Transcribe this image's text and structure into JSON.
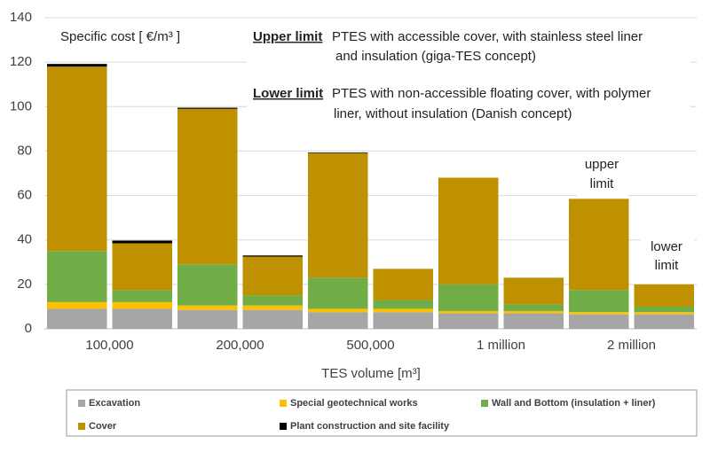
{
  "chart_data": {
    "type": "stacked_bar",
    "categories": [
      "100,000",
      null,
      "200,000",
      null,
      "500,000",
      null,
      "1 million",
      null,
      "2 million",
      null
    ],
    "xlabel": "TES volume [m³]",
    "ylim": [
      0,
      140
    ],
    "yticks": [
      0,
      20,
      40,
      60,
      80,
      100,
      120,
      140
    ],
    "grid": true,
    "series": [
      {
        "name": "Excavation",
        "color": "#a6a6a6",
        "values": [
          9,
          9,
          8.5,
          8.5,
          7.5,
          7.5,
          7,
          7,
          6.5,
          6.5
        ]
      },
      {
        "name": "Special geotechnical works",
        "color": "#ffc000",
        "values": [
          3,
          3,
          2,
          2,
          1.5,
          1.5,
          1,
          1,
          1,
          1
        ]
      },
      {
        "name": "Wall and Bottom (insulation + liner)",
        "color": "#70ad47",
        "values": [
          23,
          5.5,
          18.5,
          4.5,
          14,
          4,
          12,
          3,
          10,
          2.5
        ]
      },
      {
        "name": "Cover",
        "color": "#bf9000",
        "values": [
          83,
          21,
          70,
          17.5,
          56,
          14,
          48,
          12,
          41,
          10
        ]
      },
      {
        "name": "Plant construction and site facility",
        "color": "#000000",
        "values": [
          1.2,
          1.2,
          0.5,
          0.5,
          0.3,
          0,
          0,
          0,
          0,
          0
        ]
      }
    ],
    "annotations": {
      "cost_label": "Specific cost [ €/m³ ]",
      "upper_title": "Upper limit",
      "upper_text": [
        "PTES with accessible cover, with stainless steel liner",
        "and insulation (giga-TES concept)"
      ],
      "lower_title": "Lower limit",
      "lower_text": [
        "PTES with non-accessible floating cover, with polymer",
        "liner, without insulation (Danish concept)"
      ],
      "upper_bar": [
        "upper",
        "limit"
      ],
      "lower_bar": [
        "lower",
        "limit"
      ]
    }
  }
}
